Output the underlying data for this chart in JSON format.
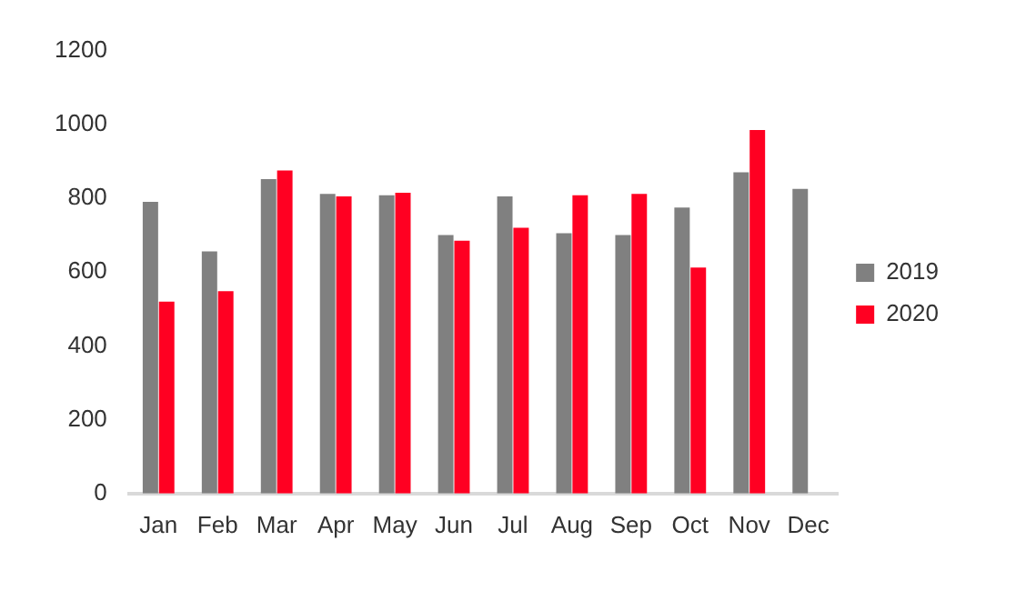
{
  "chart_data": {
    "type": "bar",
    "categories": [
      "Jan",
      "Feb",
      "Mar",
      "Apr",
      "May",
      "Jun",
      "Jul",
      "Aug",
      "Sep",
      "Oct",
      "Nov",
      "Dec"
    ],
    "series": [
      {
        "name": "2019",
        "color": "#808080",
        "values": [
          790,
          656,
          852,
          812,
          808,
          700,
          805,
          705,
          700,
          775,
          870,
          825
        ]
      },
      {
        "name": "2020",
        "color": "#ff0022",
        "values": [
          520,
          548,
          875,
          805,
          815,
          685,
          720,
          808,
          812,
          612,
          985,
          null
        ]
      }
    ],
    "ylim": [
      0,
      1200
    ],
    "yticks": [
      0,
      200,
      400,
      600,
      800,
      1000,
      1200
    ],
    "grid": false,
    "legend": "right"
  }
}
